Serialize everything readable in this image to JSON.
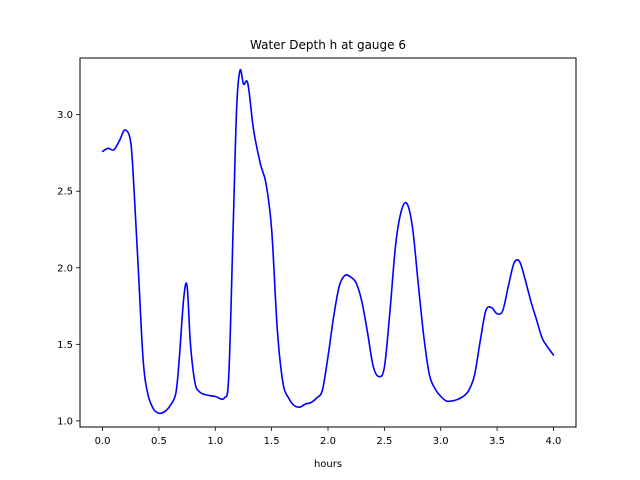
{
  "chart_data": {
    "type": "line",
    "title": "Water Depth h at gauge 6",
    "xlabel": "hours",
    "ylabel": "",
    "xlim": [
      -0.2,
      4.2
    ],
    "ylim": [
      0.96,
      3.37
    ],
    "xticks": [
      0.0,
      0.5,
      1.0,
      1.5,
      2.0,
      2.5,
      3.0,
      3.5,
      4.0
    ],
    "xtick_labels": [
      "0.0",
      "0.5",
      "1.0",
      "1.5",
      "2.0",
      "2.5",
      "3.0",
      "3.5",
      "4.0"
    ],
    "yticks": [
      1.0,
      1.5,
      2.0,
      2.5,
      3.0
    ],
    "ytick_labels": [
      "1.0",
      "1.5",
      "2.0",
      "2.5",
      "3.0"
    ],
    "grid": false,
    "color": "#0000ff",
    "series": [
      {
        "x": [
          0.0,
          0.05,
          0.1,
          0.15,
          0.2,
          0.25,
          0.28,
          0.32,
          0.36,
          0.4,
          0.45,
          0.5,
          0.55,
          0.6,
          0.65,
          0.68,
          0.72,
          0.75,
          0.78,
          0.82,
          0.86,
          0.92,
          1.0,
          1.08,
          1.12,
          1.16,
          1.19,
          1.22,
          1.25,
          1.28,
          1.3,
          1.34,
          1.4,
          1.45,
          1.5,
          1.55,
          1.6,
          1.65,
          1.7,
          1.75,
          1.8,
          1.85,
          1.9,
          1.95,
          2.0,
          2.05,
          2.1,
          2.15,
          2.2,
          2.25,
          2.3,
          2.35,
          2.4,
          2.45,
          2.5,
          2.55,
          2.6,
          2.65,
          2.7,
          2.75,
          2.8,
          2.85,
          2.9,
          2.95,
          3.0,
          3.05,
          3.1,
          3.15,
          3.2,
          3.25,
          3.3,
          3.35,
          3.4,
          3.45,
          3.5,
          3.55,
          3.6,
          3.65,
          3.7,
          3.75,
          3.8,
          3.85,
          3.9,
          3.95,
          4.0
        ],
        "y": [
          2.76,
          2.78,
          2.77,
          2.83,
          2.9,
          2.82,
          2.5,
          1.95,
          1.4,
          1.18,
          1.08,
          1.05,
          1.06,
          1.1,
          1.18,
          1.4,
          1.8,
          1.88,
          1.5,
          1.25,
          1.19,
          1.17,
          1.16,
          1.15,
          1.3,
          2.3,
          3.05,
          3.29,
          3.2,
          3.22,
          3.15,
          2.9,
          2.68,
          2.55,
          2.25,
          1.6,
          1.25,
          1.15,
          1.1,
          1.09,
          1.11,
          1.12,
          1.15,
          1.2,
          1.42,
          1.68,
          1.88,
          1.95,
          1.94,
          1.9,
          1.78,
          1.58,
          1.36,
          1.29,
          1.35,
          1.72,
          2.15,
          2.37,
          2.42,
          2.26,
          1.9,
          1.55,
          1.3,
          1.21,
          1.16,
          1.13,
          1.13,
          1.14,
          1.16,
          1.2,
          1.3,
          1.52,
          1.72,
          1.74,
          1.7,
          1.72,
          1.88,
          2.03,
          2.04,
          1.92,
          1.78,
          1.66,
          1.54,
          1.48,
          1.43
        ]
      }
    ]
  }
}
